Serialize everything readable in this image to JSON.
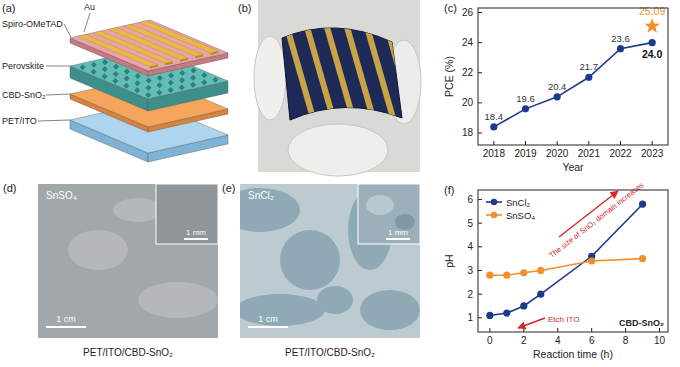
{
  "figure": {
    "schematic": {
      "title": "(a)",
      "layers": [
        "Au",
        "Spiro-OMeTAD",
        "Perovskite",
        "CBD-SnO₂",
        "PET/ITO"
      ]
    },
    "photo": {
      "title": "(b)"
    },
    "samples": [
      {
        "title": "(d)",
        "label": "SnSO₄",
        "scale_bar": "1 cm",
        "inset_scale_bar": "1 mm",
        "caption": "PET/ITO/CBD-SnO₂"
      },
      {
        "title": "(e)",
        "label": "SnCl₂",
        "scale_bar": "1 cm",
        "inset_scale_bar": "1 mm",
        "caption": "PET/ITO/CBD-SnO₂"
      }
    ]
  },
  "chart_data": [
    {
      "type": "line",
      "title": "(c)",
      "x_label": "Year",
      "y_label": "PCE (%)",
      "xlim": [
        2017.5,
        2023.5
      ],
      "xticks": [
        2018,
        2019,
        2020,
        2021,
        2022,
        2023
      ],
      "ylim": [
        17.2,
        26.3
      ],
      "yticks": [
        18,
        20,
        22,
        24,
        26
      ],
      "data_labels": true,
      "series": [
        {
          "color": "#1c3a8c",
          "marker": "circle",
          "x": [
            2018,
            2019,
            2020,
            2021,
            2022,
            2023
          ],
          "values": [
            18.4,
            19.6,
            20.4,
            21.7,
            23.6,
            24.0
          ],
          "value_labels": [
            "18.4",
            "19.6",
            "20.4",
            "21.7",
            "23.6",
            "24.0"
          ]
        },
        {
          "type": "scatter",
          "color": "#f28e2b",
          "marker": "star",
          "x": [
            2023
          ],
          "values": [
            25.09
          ]
        }
      ]
    },
    {
      "type": "line",
      "title": "(f)",
      "x_label": "Reaction time (h)",
      "y_label": "pH",
      "xlim": [
        -0.7,
        10.5
      ],
      "xticks": [
        0,
        2,
        4,
        6,
        8,
        10
      ],
      "ylim": [
        0.4,
        6.4
      ],
      "yticks": [
        1,
        2,
        3,
        4,
        5,
        6
      ],
      "legend": "upper left",
      "annotations": [
        "The size of SnO₂ domain increases",
        "Etch ITO",
        "CBD-SnO₂"
      ],
      "series": [
        {
          "name": "SnCl₂",
          "color": "#1c3a8c",
          "marker": "circle",
          "x": [
            0,
            1,
            2,
            3,
            6,
            9
          ],
          "values": [
            1.1,
            1.2,
            1.5,
            2.0,
            3.6,
            5.8
          ]
        },
        {
          "name": "SnSO₄",
          "color": "#f28e2b",
          "marker": "circle",
          "x": [
            0,
            1,
            2,
            3,
            6,
            9
          ],
          "values": [
            2.8,
            2.8,
            2.9,
            3.0,
            3.4,
            3.5
          ]
        }
      ]
    }
  ]
}
